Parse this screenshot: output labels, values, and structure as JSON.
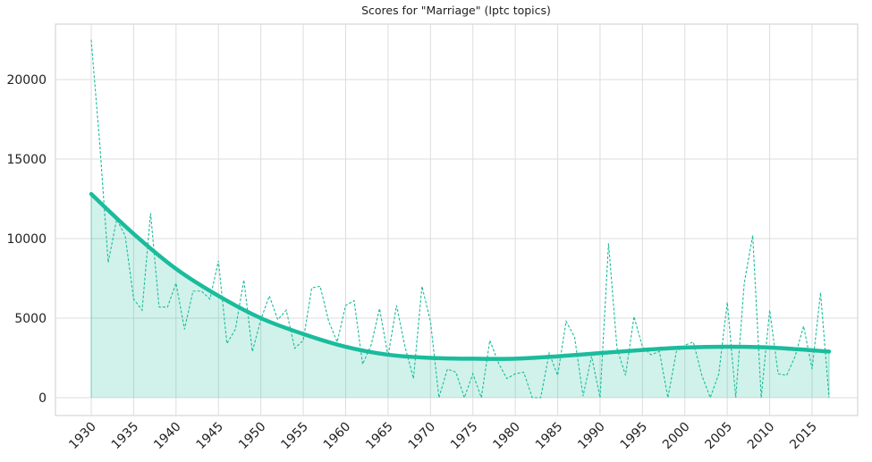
{
  "chart_data": {
    "type": "line",
    "title": "Scores for \"Marriage\" (Iptc topics)",
    "xlabel": "",
    "ylabel": "",
    "xlim": [
      1926.5,
      1921.5
    ],
    "ylim": [
      -1000,
      23500
    ],
    "grid": true,
    "x_ticks": [
      1930,
      1935,
      1940,
      1945,
      1950,
      1955,
      1960,
      1965,
      1970,
      1975,
      1980,
      1985,
      1990,
      1995,
      2000,
      2005,
      2010,
      2015
    ],
    "x_tick_labels": [
      "1930",
      "1935",
      "1940",
      "1945",
      "1950",
      "1955",
      "1960",
      "1965",
      "1970",
      "1975",
      "1980",
      "1985",
      "1990",
      "1995",
      "2000",
      "2005",
      "2010",
      "2015"
    ],
    "y_ticks": [
      0,
      5000,
      10000,
      15000,
      20000
    ],
    "y_tick_labels": [
      "0",
      "5000",
      "10000",
      "15000",
      "20000"
    ],
    "color": "#1abc9c",
    "series": [
      {
        "style": "dashed",
        "x": [
          1930,
          1931,
          1932,
          1933,
          1934,
          1935,
          1936,
          1937,
          1938,
          1939,
          1940,
          1941,
          1942,
          1943,
          1944,
          1945,
          1946,
          1947,
          1948,
          1949,
          1950,
          1951,
          1952,
          1953,
          1954,
          1955,
          1956,
          1957,
          1958,
          1959,
          1960,
          1961,
          1962,
          1963,
          1964,
          1965,
          1966,
          1967,
          1968,
          1969,
          1970,
          1971,
          1972,
          1973,
          1974,
          1975,
          1976,
          1977,
          1978,
          1979,
          1980,
          1981,
          1982,
          1983,
          1984,
          1985,
          1986,
          1987,
          1988,
          1989,
          1990,
          1991,
          1992,
          1993,
          1994,
          1995,
          1996,
          1997,
          1998,
          1999,
          2000,
          2001,
          2002,
          2003,
          2004,
          2005,
          2006,
          2007,
          2008,
          2009,
          2010,
          2011,
          2012,
          2013,
          2014,
          2015,
          2016,
          2017
        ],
        "y": [
          22500,
          16000,
          8500,
          11200,
          10200,
          6200,
          5500,
          11600,
          5700,
          5700,
          7200,
          4300,
          6700,
          6700,
          6200,
          8600,
          3400,
          4300,
          7400,
          2900,
          4900,
          6400,
          4900,
          5500,
          3100,
          3600,
          6900,
          7000,
          4800,
          3500,
          5800,
          6100,
          2100,
          3300,
          5600,
          2600,
          5800,
          3200,
          1200,
          7000,
          4800,
          0,
          1800,
          1600,
          0,
          1500,
          0,
          3600,
          2200,
          1200,
          1500,
          1600,
          0,
          0,
          2800,
          1400,
          4800,
          3800,
          100,
          2600,
          0,
          9700,
          3100,
          1400,
          5100,
          3200,
          2700,
          2900,
          0,
          2900,
          3300,
          3500,
          1400,
          0,
          1500,
          6000,
          0,
          7200,
          10200,
          0,
          5500,
          1500,
          1400,
          2600,
          4500,
          1800,
          6600,
          0
        ]
      },
      {
        "style": "solid-smooth",
        "x": [
          1930,
          1935,
          1940,
          1945,
          1950,
          1955,
          1960,
          1965,
          1970,
          1975,
          1980,
          1985,
          1990,
          1995,
          2000,
          2005,
          2010,
          2017
        ],
        "y": [
          12800,
          10300,
          8100,
          6400,
          5000,
          4000,
          3200,
          2700,
          2500,
          2450,
          2450,
          2600,
          2800,
          3000,
          3150,
          3200,
          3150,
          2900
        ]
      }
    ]
  }
}
